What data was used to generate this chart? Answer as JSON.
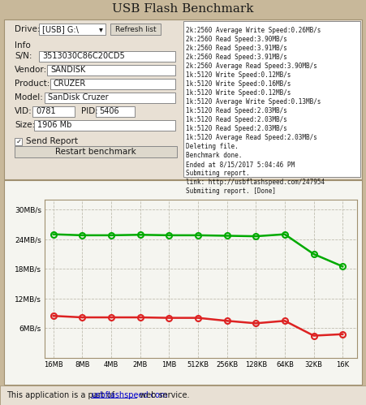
{
  "title": "USB Flash Benchmark",
  "bg_color": "#c8b89a",
  "panel_color": "#e8e0d4",
  "white": "#ffffff",
  "dark_text": "#1a1a1a",
  "drive_label": "Drive:",
  "drive_value": "[USB] G:\\",
  "refresh_btn": "Refresh list",
  "info_label": "Info",
  "sn_label": "S/N:",
  "sn_value": "3513030C86C20CD5",
  "vendor_label": "Vendor:",
  "vendor_value": "SANDISK",
  "product_label": "Product:",
  "product_value": "CRUZER",
  "model_label": "Model:",
  "model_value": "SanDisk Cruzer",
  "vid_label": "VID:",
  "vid_value": "0781",
  "pid_label": "PID:",
  "pid_value": "5406",
  "size_label": "Size:",
  "size_value": "1906 Mb",
  "send_report": "Send Report",
  "restart_btn": "Restart benchmark",
  "log_lines": [
    "2k:2560 Average Write Speed:0.26MB/s",
    "2k:2560 Read Speed:3.90MB/s",
    "2k:2560 Read Speed:3.91MB/s",
    "2k:2560 Read Speed:3.91MB/s",
    "2k:2560 Average Read Speed:3.90MB/s",
    "1k:5120 Write Speed:0.12MB/s",
    "1k:5120 Write Speed:0.16MB/s",
    "1k:5120 Write Speed:0.12MB/s",
    "1k:5120 Average Write Speed:0.13MB/s",
    "1k:5120 Read Speed:2.03MB/s",
    "1k:5120 Read Speed:2.03MB/s",
    "1k:5120 Read Speed:2.03MB/s",
    "1k:5120 Average Read Speed:2.03MB/s",
    "Deleting file.",
    "Benchmark done.",
    "Ended at 8/15/2017 5:04:46 PM",
    "Submiting report.",
    "link: http://usbflashspeed.com/247954",
    "Submiting report. [Done]"
  ],
  "footer_text1": "This application is a part of ",
  "footer_link": "usbflashspeed.com",
  "footer_text2": " web service.",
  "chart_bg": "#f5f5f0",
  "green_color": "#00aa00",
  "red_color": "#dd2222",
  "x_labels": [
    "16MB",
    "8MB",
    "4MB",
    "2MB",
    "1MB",
    "512KB",
    "256KB",
    "128KB",
    "64KB",
    "32KB",
    "16K"
  ],
  "green_values": [
    25.0,
    24.8,
    24.8,
    24.9,
    24.8,
    24.8,
    24.7,
    24.6,
    25.0,
    21.0,
    18.5
  ],
  "red_values": [
    8.5,
    8.2,
    8.2,
    8.2,
    8.1,
    8.1,
    7.5,
    7.0,
    7.5,
    4.5,
    4.8
  ],
  "y_ticks": [
    6,
    12,
    18,
    24,
    30
  ],
  "y_labels": [
    "6MB/s",
    "12MB/s",
    "18MB/s",
    "24MB/s",
    "30MB/s"
  ],
  "ylim": [
    0,
    32
  ],
  "button_color": "#ddd8cc",
  "border_color": "#a09070",
  "input_border": "#888888",
  "grid_color": "#c0bdb0",
  "link_color": "#0000cc"
}
